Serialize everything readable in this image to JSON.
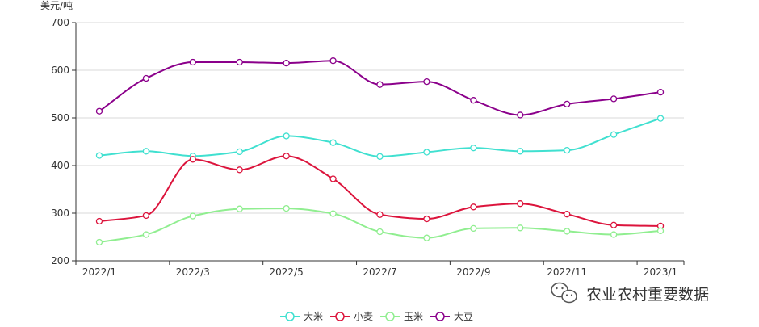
{
  "chart_data": {
    "type": "line",
    "ylabel": "美元/吨",
    "ylim": [
      200,
      700
    ],
    "yticks": [
      200,
      300,
      400,
      500,
      600,
      700
    ],
    "x": [
      "2022/1",
      "2022/2",
      "2022/3",
      "2022/4",
      "2022/5",
      "2022/6",
      "2022/7",
      "2022/8",
      "2022/9",
      "2022/10",
      "2022/11",
      "2022/12",
      "2023/1"
    ],
    "xtick_labels": [
      "2022/1",
      "2022/3",
      "2022/5",
      "2022/7",
      "2022/9",
      "2022/11",
      "2023/1"
    ],
    "grid": true,
    "smooth": true,
    "legend_position": "bottom-center",
    "series": [
      {
        "name": "大米",
        "color": "#40e0d0",
        "values": [
          421,
          430,
          420,
          429,
          462,
          448,
          419,
          428,
          437,
          430,
          432,
          465,
          499
        ]
      },
      {
        "name": "小麦",
        "color": "#dc143c",
        "values": [
          283,
          295,
          413,
          391,
          420,
          372,
          297,
          288,
          313,
          320,
          298,
          275,
          273
        ]
      },
      {
        "name": "玉米",
        "color": "#90ee90",
        "values": [
          239,
          255,
          294,
          309,
          310,
          299,
          261,
          248,
          268,
          269,
          262,
          255,
          263
        ]
      },
      {
        "name": "大豆",
        "color": "#8b008b",
        "values": [
          514,
          583,
          617,
          617,
          615,
          620,
          570,
          576,
          537,
          506,
          529,
          540,
          554
        ]
      }
    ]
  },
  "watermark": {
    "icon": "wechat-icon",
    "text": "农业农村重要数据"
  }
}
